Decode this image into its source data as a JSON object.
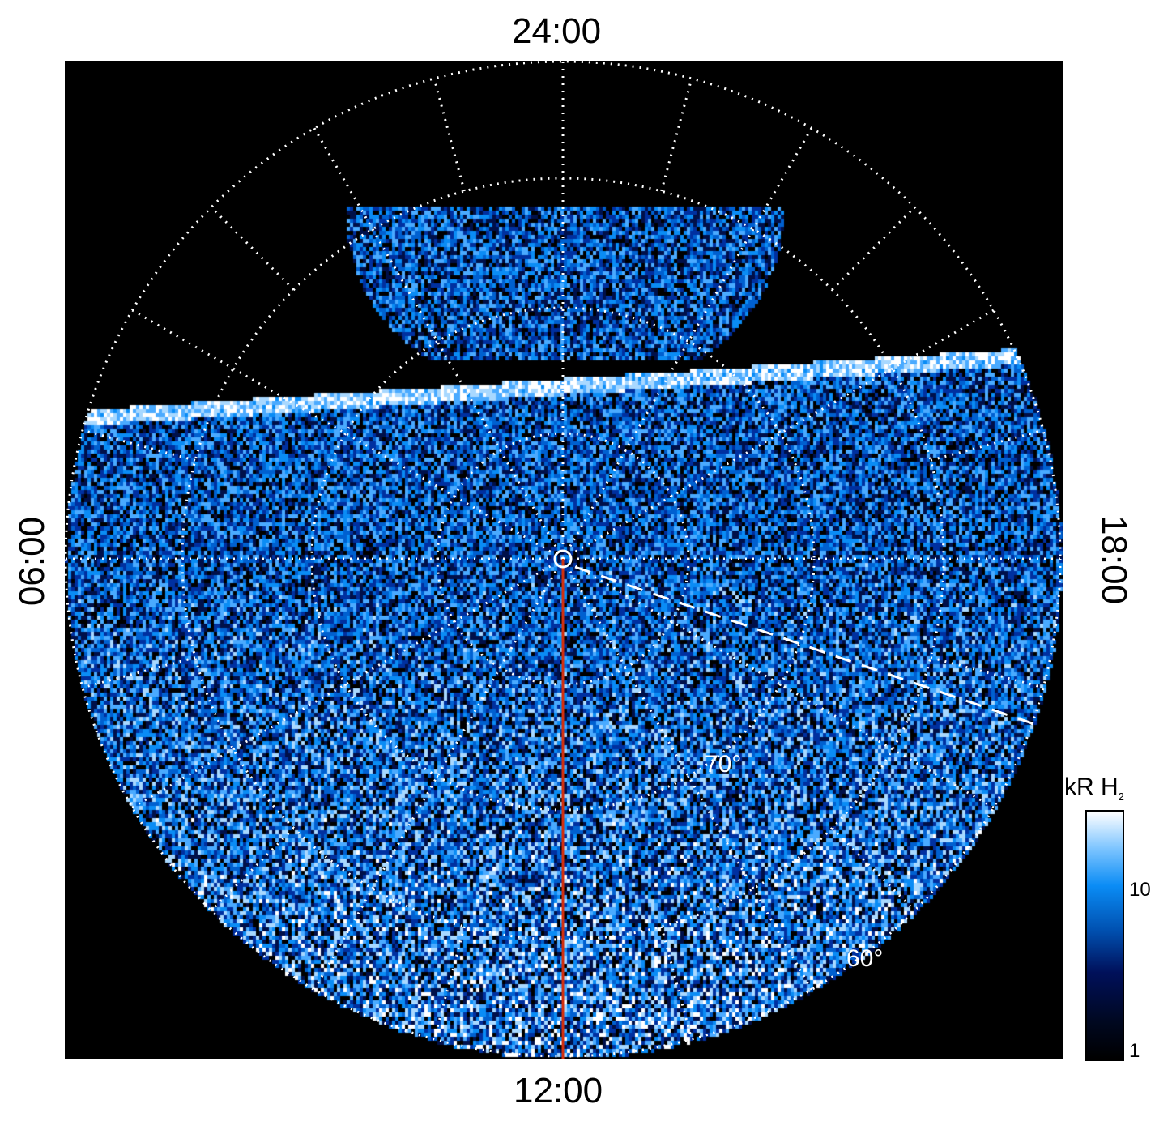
{
  "chart_data": {
    "type": "heatmap",
    "projection": "polar",
    "local_time_labels": {
      "top": "24:00",
      "left": "06:00",
      "right": "18:00",
      "bottom": "12:00"
    },
    "latitude_labels": [
      "70°",
      "60°"
    ],
    "colorbar": {
      "title": "kR H",
      "subscript": "2",
      "scale": "log",
      "ticks": [
        "10",
        "1"
      ],
      "range": [
        1,
        30
      ]
    },
    "colors": {
      "background": "#000000",
      "grid": "#ffffff",
      "meridian_line": "#d03010",
      "data_low": "#000000",
      "data_mid": "#0a8cf5",
      "data_high": "#ffffff"
    }
  }
}
